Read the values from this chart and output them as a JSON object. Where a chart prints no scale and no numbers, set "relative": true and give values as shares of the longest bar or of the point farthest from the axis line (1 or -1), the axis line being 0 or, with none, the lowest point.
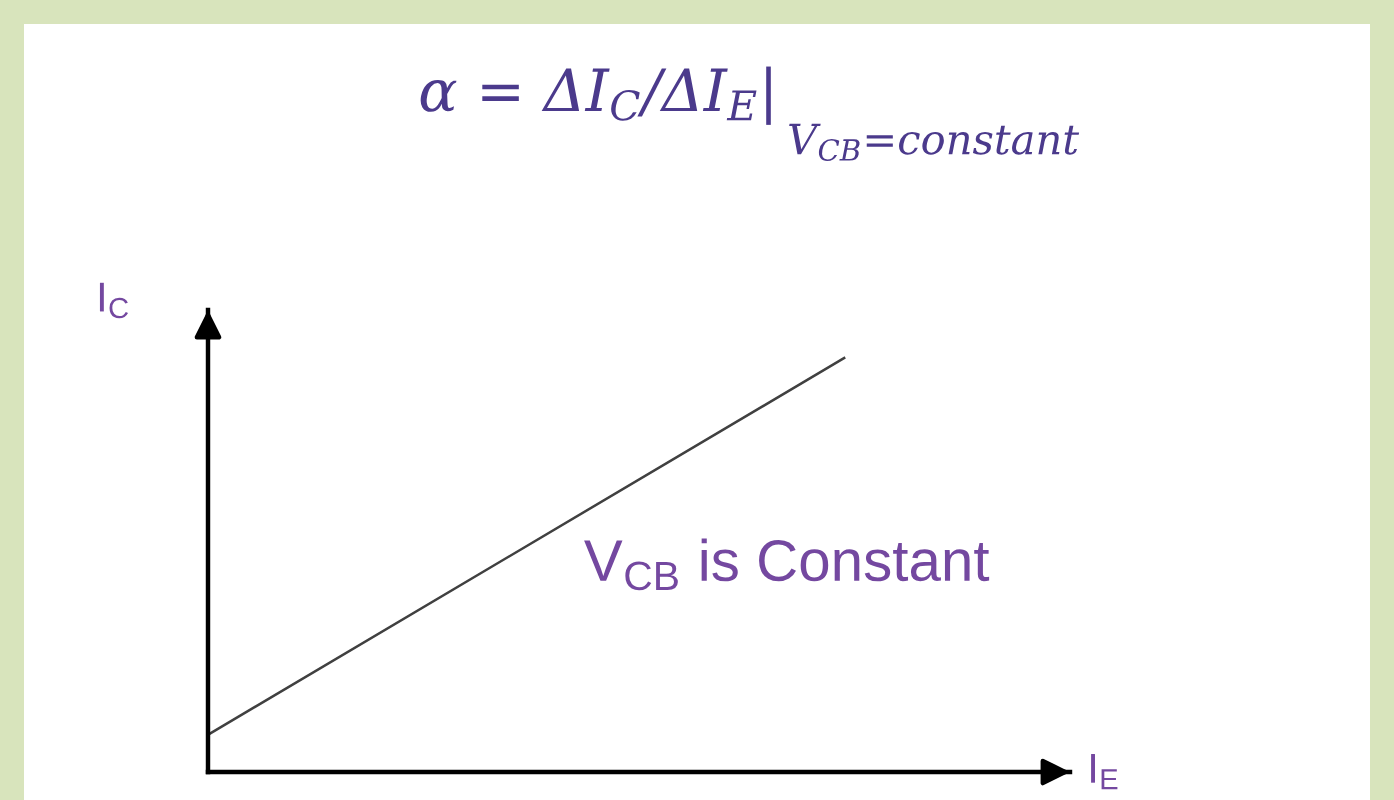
{
  "chart_data": {
    "type": "line",
    "title": "α = ΔI$_{C}$/ΔI$_{E}$|",
    "subtitle": "V$_{CB}$=constant",
    "xlabel": "I$_{E}$",
    "ylabel": "I$_{C}$",
    "categories": [
      null,
      null
    ],
    "series": [
      {
        "color": "#404040",
        "values": [
          0.09,
          1
        ]
      }
    ],
    "relative": true,
    "annotations": [
      "V$_{CB}$ is Constant"
    ],
    "line_style": "solid"
  }
}
